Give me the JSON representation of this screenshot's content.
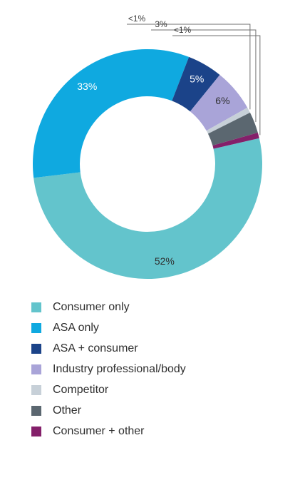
{
  "chart_data": {
    "type": "pie",
    "donut": true,
    "title": "",
    "slices": [
      {
        "label": "Consumer only",
        "value": 52,
        "display": "52%",
        "color": "#63c4cc"
      },
      {
        "label": "ASA only",
        "value": 33,
        "display": "33%",
        "color": "#0fa9e0"
      },
      {
        "label": "ASA + consumer",
        "value": 5,
        "display": "5%",
        "color": "#1b4389"
      },
      {
        "label": "Industry professional/body",
        "value": 6,
        "display": "6%",
        "color": "#a9a4d8"
      },
      {
        "label": "Competitor",
        "value": 0.8,
        "display": "<1%",
        "color": "#c7d0d8"
      },
      {
        "label": "Other",
        "value": 3,
        "display": "3%",
        "color": "#5b6770"
      },
      {
        "label": "Consumer + other",
        "value": 0.8,
        "display": "<1%",
        "color": "#84206a"
      }
    ],
    "legend_position": "bottom"
  }
}
